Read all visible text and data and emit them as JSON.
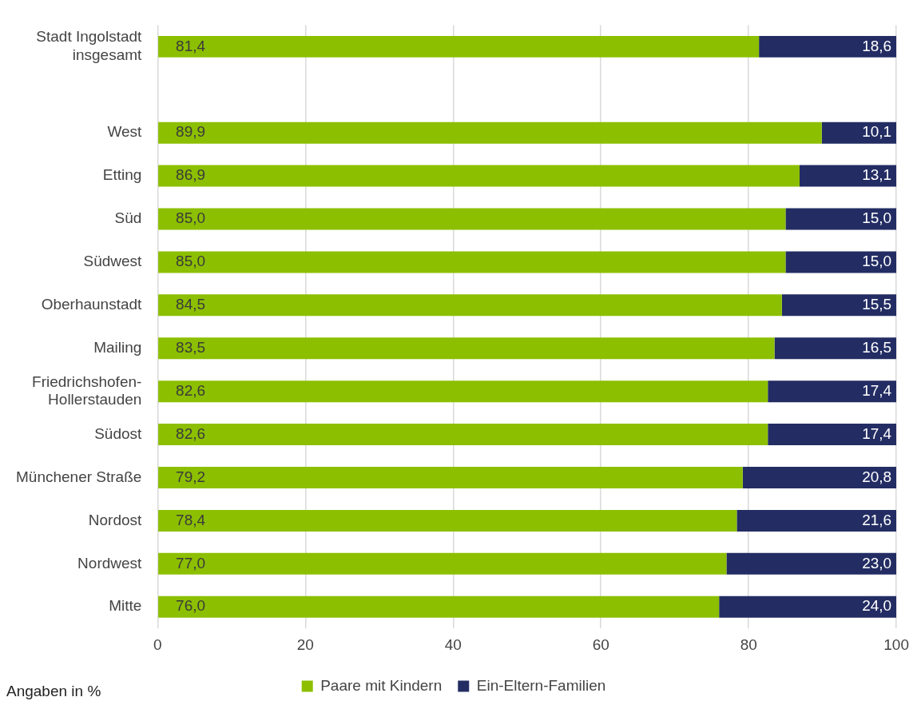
{
  "chart_data": {
    "type": "bar",
    "orientation": "horizontal",
    "stacked": true,
    "categories": [
      "Stadt Ingolstadt insgesamt",
      null,
      "West",
      "Etting",
      "Süd",
      "Südwest",
      "Oberhaunstadt",
      "Mailing",
      "Friedrichshofen-Hollerstauden",
      "Südost",
      "Münchener Straße",
      "Nordost",
      "Nordwest",
      "Mitte"
    ],
    "series": [
      {
        "name": "Paare mit Kindern",
        "color": "#8cbf00",
        "values": [
          81.4,
          null,
          89.9,
          86.9,
          85.0,
          85.0,
          84.5,
          83.5,
          82.6,
          82.6,
          79.2,
          78.4,
          77.0,
          76.0
        ],
        "value_labels": [
          "81,4",
          null,
          "89,9",
          "86,9",
          "85,0",
          "85,0",
          "84,5",
          "83,5",
          "82,6",
          "82,6",
          "79,2",
          "78,4",
          "77,0",
          "76,0"
        ]
      },
      {
        "name": "Ein-Eltern-Familien",
        "color": "#232d63",
        "values": [
          18.6,
          null,
          10.1,
          13.1,
          15.0,
          15.0,
          15.5,
          16.5,
          17.4,
          17.4,
          20.8,
          21.6,
          23.0,
          24.0
        ],
        "value_labels": [
          "18,6",
          null,
          "10,1",
          "13,1",
          "15,0",
          "15,0",
          "15,5",
          "16,5",
          "17,4",
          "17,4",
          "20,8",
          "21,6",
          "23,0",
          "24,0"
        ]
      }
    ],
    "xlim": [
      0,
      100
    ],
    "xticks": [
      0,
      20,
      40,
      60,
      80,
      100
    ],
    "grid": "x",
    "legend": "bottom",
    "annotations": [
      "Angaben in %"
    ]
  }
}
